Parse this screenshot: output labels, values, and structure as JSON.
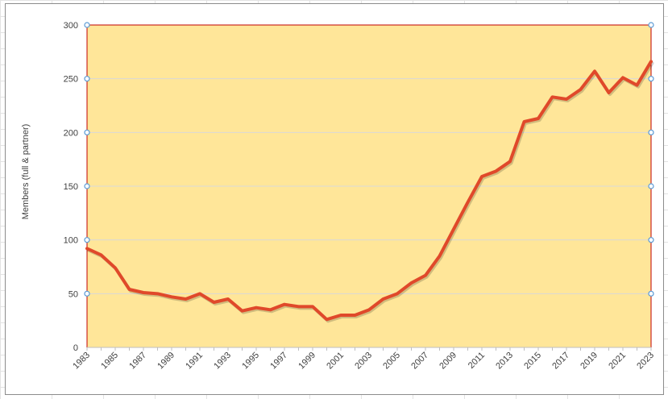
{
  "chart_data": {
    "type": "line",
    "title": "",
    "xlabel": "",
    "ylabel": "Members (full & partner)",
    "ylim": [
      0,
      300
    ],
    "yticks": [
      0,
      50,
      100,
      150,
      200,
      250,
      300
    ],
    "xlim": [
      1983,
      2023
    ],
    "xtick_labels": [
      "1983",
      "1985",
      "1987",
      "1989",
      "1991",
      "1993",
      "1995",
      "1997",
      "1999",
      "2001",
      "2003",
      "2005",
      "2007",
      "2009",
      "2011",
      "2013",
      "2015",
      "2017",
      "2019",
      "2021",
      "2023"
    ],
    "grid": true,
    "legend": "none",
    "series": [
      {
        "x": [
          1983,
          1984,
          1985,
          1986,
          1987,
          1988,
          1989,
          1990,
          1991,
          1992,
          1993,
          1994,
          1995,
          1996,
          1997,
          1998,
          1999,
          2000,
          2001,
          2002,
          2003,
          2004,
          2005,
          2006,
          2007,
          2008,
          2009,
          2010,
          2011,
          2012,
          2013,
          2014,
          2015,
          2016,
          2017,
          2018,
          2019,
          2020,
          2021,
          2022,
          2023
        ],
        "values": [
          92,
          86,
          74,
          54,
          51,
          50,
          47,
          45,
          50,
          42,
          45,
          34,
          37,
          35,
          40,
          38,
          38,
          26,
          30,
          30,
          35,
          45,
          50,
          60,
          67,
          85,
          110,
          135,
          159,
          164,
          173,
          210,
          213,
          233,
          231,
          240,
          257,
          237,
          251,
          244,
          266
        ],
        "color": "#e0492a"
      }
    ],
    "colors": {
      "plot_area": "#ffe699",
      "plot_border": "#c00000",
      "gridline": "#d9d9d9",
      "handle": "#5b9bd5"
    }
  }
}
